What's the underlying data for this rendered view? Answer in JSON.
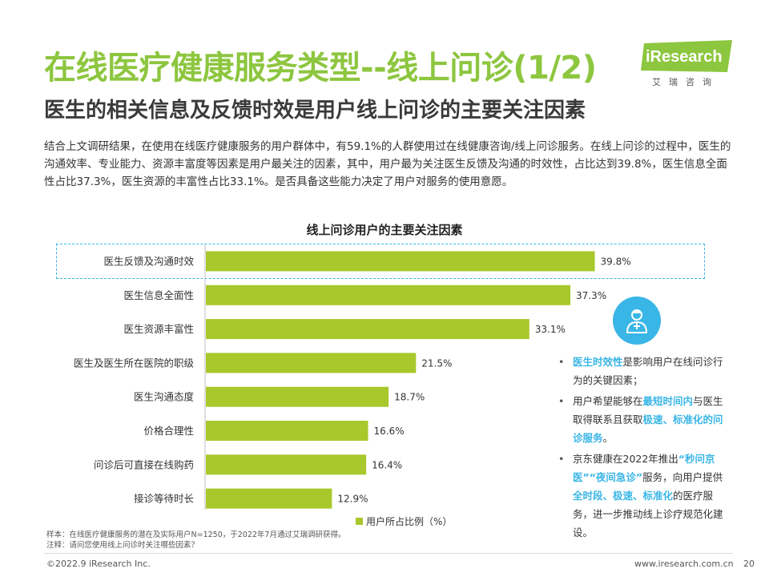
{
  "header": {
    "title": "在线医疗健康服务类型--线上问诊(1/2)",
    "subtitle": "医生的相关信息及反馈时效是用户线上问诊的主要关注因素"
  },
  "logo": {
    "brand": "iResearch",
    "cn": "艾瑞咨询",
    "color": "#8dc63f"
  },
  "intro": "结合上文调研结果，在使用在线医疗健康服务的用户群体中，有59.1%的人群使用过在线健康咨询/线上问诊服务。在线上问诊的过程中，医生的沟通效率、专业能力、资源丰富度等因素是用户最关注的因素，其中，用户最为关注医生反馈及沟通的时效性，占比达到39.8%，医生信息全面性占比37.3%，医生资源的丰富性占比33.1%。是否具备这些能力决定了用户对服务的使用意愿。",
  "chart_data": {
    "type": "bar",
    "orientation": "horizontal",
    "title": "线上问诊用户的主要关注因素",
    "categories": [
      "医生反馈及沟通时效",
      "医生信息全面性",
      "医生资源丰富性",
      "医生及医生所在医院的职级",
      "医生沟通态度",
      "价格合理性",
      "问诊后可直接在线购药",
      "接诊等待时长"
    ],
    "series": [
      {
        "name": "用户所占比例（%）",
        "values": [
          39.8,
          37.3,
          33.1,
          21.5,
          18.7,
          16.6,
          16.4,
          12.9
        ],
        "color": "#a8c82b"
      }
    ],
    "value_labels": [
      "39.8%",
      "37.3%",
      "33.1%",
      "21.5%",
      "18.7%",
      "16.6%",
      "16.4%",
      "12.9%"
    ],
    "xlim": [
      0,
      40
    ],
    "legend_position": "bottom",
    "highlighted_category": "医生反馈及沟通时效",
    "highlight_color": "#3ab6e6"
  },
  "legend_label": "用户所占比例（%）",
  "bullets": [
    [
      {
        "text": "医生时效性",
        "hl": true
      },
      {
        "text": "是影响用户在线问诊行为的关键因素；",
        "hl": false
      }
    ],
    [
      {
        "text": "用户希望能够在",
        "hl": false
      },
      {
        "text": "最短时间内",
        "hl": true
      },
      {
        "text": "与医生取得联系且获取",
        "hl": false
      },
      {
        "text": "极速、标准化的问诊服务",
        "hl": true
      },
      {
        "text": "。",
        "hl": false
      }
    ],
    [
      {
        "text": "京东健康在2022年推出",
        "hl": false
      },
      {
        "text": "“秒问京医”“夜间急诊”",
        "hl": true
      },
      {
        "text": "服务，向用户提供",
        "hl": false
      },
      {
        "text": "全时段、极速、标准化",
        "hl": true
      },
      {
        "text": "的医疗服务，进一步推动线上诊疗规范化建设。",
        "hl": false
      }
    ]
  ],
  "notes": {
    "sample": "样本：在线医疗健康服务的潜在及实际用户N=1250，于2022年7月通过艾瑞调研获得。",
    "remark": "注释：请问您使用线上问诊时关注哪些因素？"
  },
  "footer": {
    "copyright": "©2022.9 iResearch Inc.",
    "website": "www.iresearch.com.cn",
    "page": "20"
  },
  "icons": {
    "doctor": "doctor-icon"
  }
}
